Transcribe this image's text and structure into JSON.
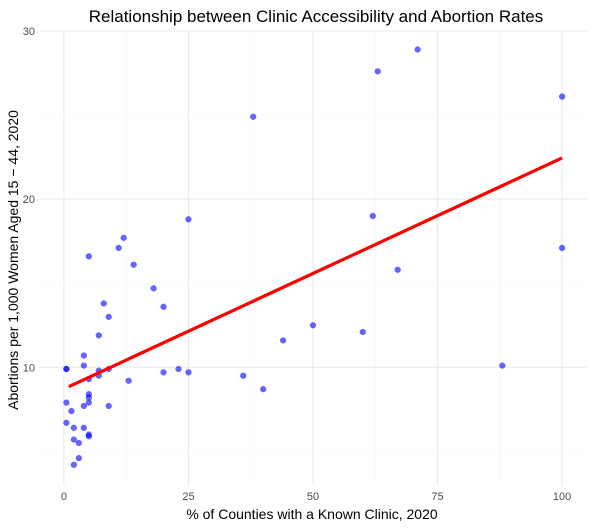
{
  "chart_data": {
    "type": "scatter",
    "title": "Relationship between Clinic Accessibility and Abortion Rates",
    "xlabel": "% of Counties with a Known Clinic, 2020",
    "ylabel": "Abortions per 1,000 Women Aged 15 − 44, 2020",
    "xlim": [
      -5,
      105
    ],
    "ylim": [
      3,
      30
    ],
    "x_ticks": [
      0,
      25,
      50,
      75,
      100
    ],
    "y_ticks": [
      10,
      20,
      30
    ],
    "x_tick_labels": [
      "0",
      "25",
      "50",
      "75",
      "100"
    ],
    "y_tick_labels": [
      "10",
      "20",
      "30"
    ],
    "grid": true,
    "legend": "none",
    "point_color": "#0000ff",
    "line_color": "#ff0000",
    "points": [
      [
        0.5,
        9.9
      ],
      [
        0.5,
        7.9
      ],
      [
        0.5,
        6.7
      ],
      [
        0.5,
        9.9
      ],
      [
        1.5,
        7.4
      ],
      [
        2,
        5.7
      ],
      [
        2,
        6.4
      ],
      [
        2,
        4.2
      ],
      [
        3,
        4.6
      ],
      [
        3,
        5.5
      ],
      [
        4,
        10.7
      ],
      [
        4,
        10.1
      ],
      [
        4,
        7.7
      ],
      [
        4,
        6.4
      ],
      [
        5,
        8.4
      ],
      [
        5,
        8.2
      ],
      [
        5,
        9.3
      ],
      [
        5,
        7.9
      ],
      [
        5,
        6
      ],
      [
        5,
        5.9
      ],
      [
        5,
        16.6
      ],
      [
        7,
        9.8
      ],
      [
        7,
        9.5
      ],
      [
        7,
        11.9
      ],
      [
        8,
        13.8
      ],
      [
        9,
        13
      ],
      [
        9,
        9.9
      ],
      [
        9,
        7.7
      ],
      [
        11,
        17.1
      ],
      [
        12,
        17.7
      ],
      [
        13,
        9.2
      ],
      [
        14,
        16.1
      ],
      [
        18,
        14.7
      ],
      [
        20,
        13.6
      ],
      [
        20,
        9.7
      ],
      [
        23,
        9.9
      ],
      [
        25,
        18.8
      ],
      [
        25,
        9.7
      ],
      [
        36,
        9.5
      ],
      [
        38,
        24.9
      ],
      [
        40,
        8.7
      ],
      [
        44,
        11.6
      ],
      [
        50,
        12.5
      ],
      [
        60,
        12.1
      ],
      [
        62,
        19
      ],
      [
        63,
        27.6
      ],
      [
        67,
        15.8
      ],
      [
        71,
        28.9
      ],
      [
        88,
        10.1
      ],
      [
        100,
        26.1
      ],
      [
        100,
        17.1
      ]
    ],
    "trend_line": {
      "x": [
        1,
        100
      ],
      "y": [
        8.85,
        22.45
      ]
    }
  }
}
